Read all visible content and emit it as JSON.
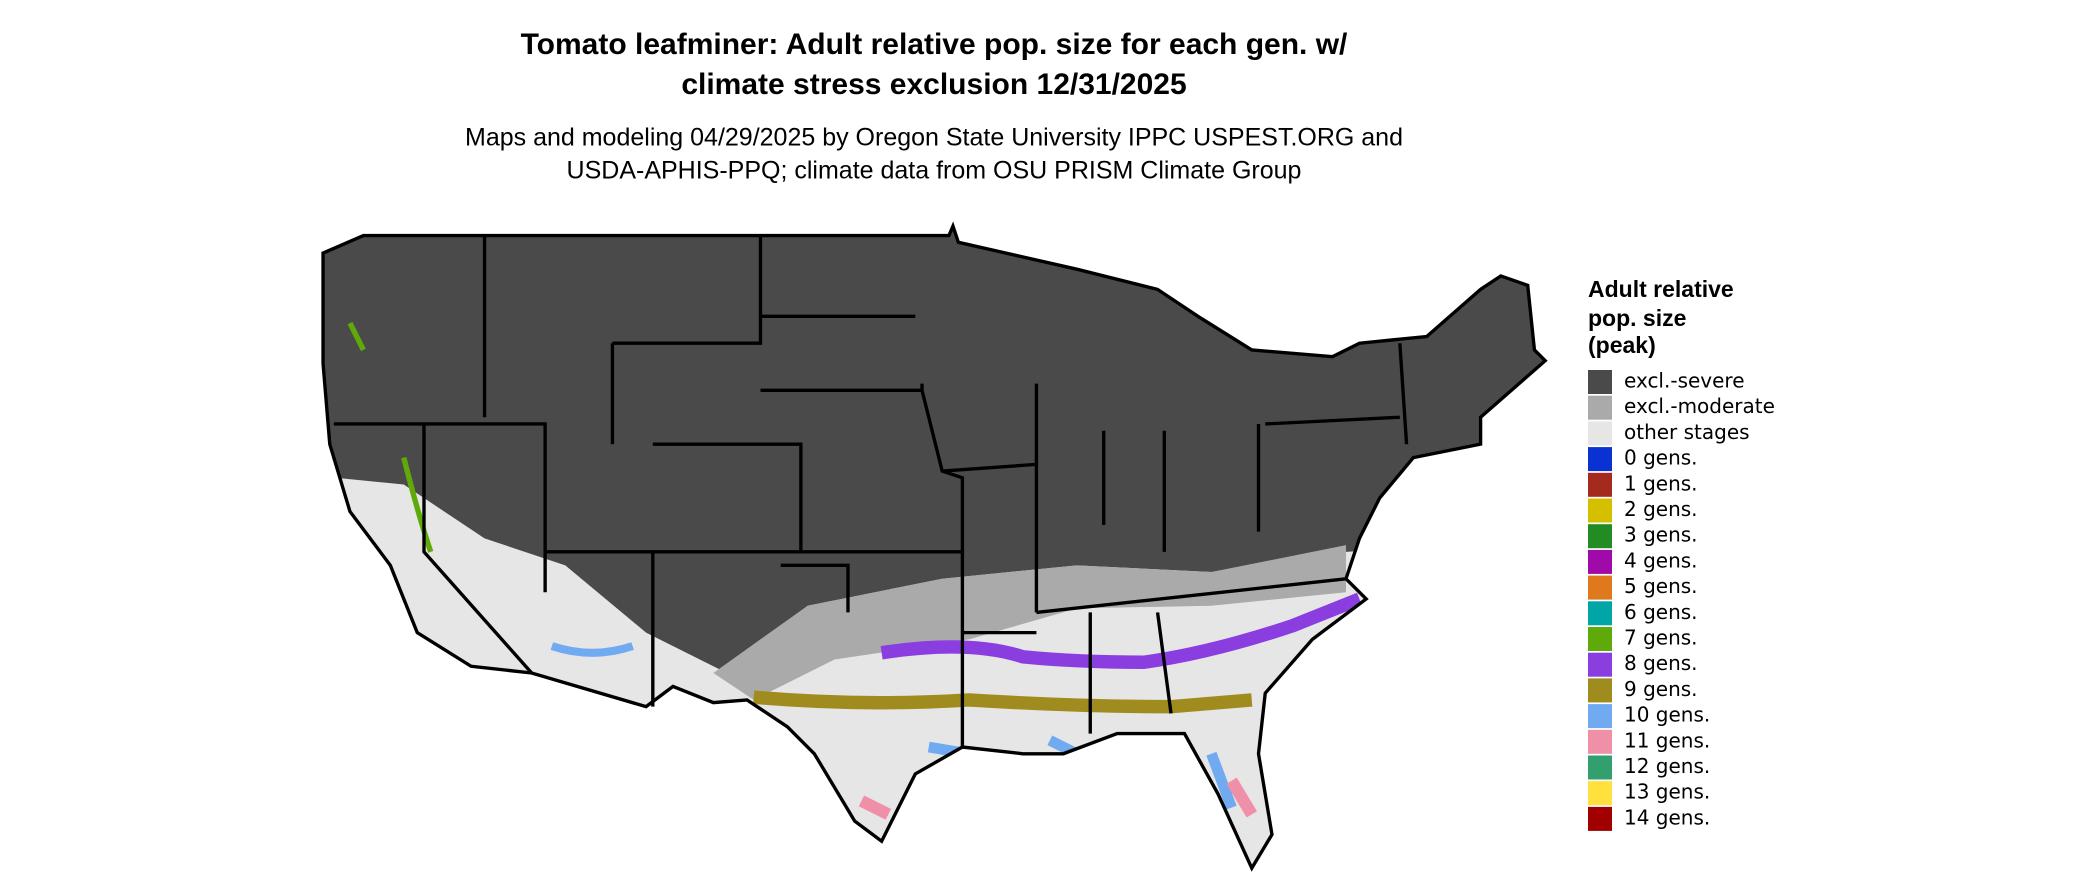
{
  "title": [
    "Tomato leafminer: Adult relative pop. size for each gen. w/",
    "climate stress exclusion 12/31/2025"
  ],
  "subtitle": [
    "Maps and modeling 04/29/2025 by Oregon State University IPPC USPEST.ORG and",
    "USDA-APHIS-PPQ; climate data from OSU PRISM Climate Group"
  ],
  "legend": {
    "title": [
      "Adult relative",
      "pop. size",
      "(peak)"
    ],
    "items": [
      {
        "label": "excl.-severe",
        "color": "#4a4a4a"
      },
      {
        "label": "excl.-moderate",
        "color": "#aaaaaa"
      },
      {
        "label": "other stages",
        "color": "#e6e6e6"
      },
      {
        "label": "0 gens.",
        "color": "#0a32d2"
      },
      {
        "label": "1 gens.",
        "color": "#a52a1e"
      },
      {
        "label": "2 gens.",
        "color": "#d4c000"
      },
      {
        "label": "3 gens.",
        "color": "#228b22"
      },
      {
        "label": "4 gens.",
        "color": "#a00aa8"
      },
      {
        "label": "5 gens.",
        "color": "#e0781e"
      },
      {
        "label": "6 gens.",
        "color": "#00a6a6"
      },
      {
        "label": "7 gens.",
        "color": "#5faa0a"
      },
      {
        "label": "8 gens.",
        "color": "#8a3ee0"
      },
      {
        "label": "9 gens.",
        "color": "#a08c1e"
      },
      {
        "label": "10 gens.",
        "color": "#70aaf0"
      },
      {
        "label": "11 gens.",
        "color": "#f090a8"
      },
      {
        "label": "12 gens.",
        "color": "#32a06e"
      },
      {
        "label": "13 gens.",
        "color": "#ffe03c"
      },
      {
        "label": "14 gens.",
        "color": "#a00000"
      }
    ]
  }
}
